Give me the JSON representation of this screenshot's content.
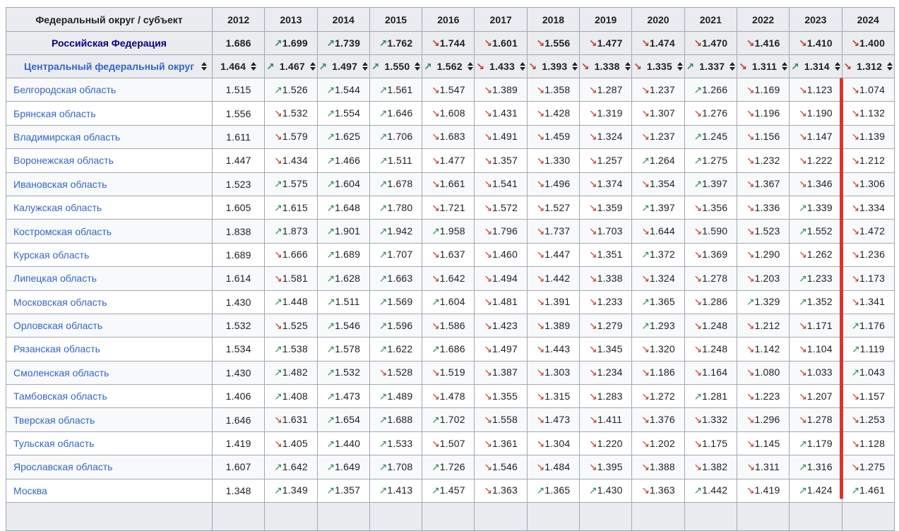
{
  "colors": {
    "header_bg": "#eaecf0",
    "border": "#a2a9b1",
    "link": "#3366cc",
    "federation_link": "#0b0080",
    "trend_up": "#2e8b57",
    "trend_down": "#c0392b",
    "highlight_line": "#e0312d",
    "row_stripe": "#f8f9fa"
  },
  "highlight": {
    "column": "2024"
  },
  "table": {
    "header": {
      "region_col": "Федеральный округ / субъект",
      "years": [
        "2012",
        "2013",
        "2014",
        "2015",
        "2016",
        "2017",
        "2018",
        "2019",
        "2020",
        "2021",
        "2022",
        "2023",
        "2024"
      ]
    },
    "federation_row": {
      "name": "Российская Федерация",
      "values": [
        "1.686",
        "↗1.699",
        "↗1.739",
        "↗1.762",
        "↘1.744",
        "↘1.601",
        "↘1.556",
        "↘1.477",
        "↘1.474",
        "↘1.470",
        "↘1.416",
        "↘1.410",
        "↘1.400"
      ]
    },
    "district_row": {
      "name": "Центральный федеральный округ",
      "values": [
        "1.464",
        "↗1.467",
        "↗1.497",
        "↗1.550",
        "↗1.562",
        "↘1.433",
        "↘1.393",
        "↘1.338",
        "↘1.335",
        "↗1.337",
        "↘1.311",
        "↗1.314",
        "↘1.312"
      ]
    },
    "region_rows": [
      {
        "name": "Белгородская область",
        "values": [
          "1.515",
          "↗1.526",
          "↗1.544",
          "↗1.561",
          "↘1.547",
          "↘1.389",
          "↘1.358",
          "↘1.287",
          "↘1.237",
          "↗1.266",
          "↘1.169",
          "↘1.123",
          "↘1.074"
        ]
      },
      {
        "name": "Брянская область",
        "values": [
          "1.556",
          "↘1.532",
          "↗1.554",
          "↗1.646",
          "↘1.608",
          "↘1.431",
          "↘1.428",
          "↘1.319",
          "↘1.307",
          "↘1.276",
          "↘1.196",
          "↘1.190",
          "↘1.132"
        ]
      },
      {
        "name": "Владимирская область",
        "values": [
          "1.611",
          "↘1.579",
          "↗1.625",
          "↗1.706",
          "↘1.683",
          "↘1.491",
          "↘1.459",
          "↘1.324",
          "↘1.237",
          "↗1.245",
          "↘1.156",
          "↘1.147",
          "↘1.139"
        ]
      },
      {
        "name": "Воронежская область",
        "values": [
          "1.447",
          "↘1.434",
          "↗1.466",
          "↗1.511",
          "↘1.477",
          "↘1.357",
          "↘1.330",
          "↘1.257",
          "↗1.264",
          "↗1.275",
          "↘1.232",
          "↘1.222",
          "↘1.212"
        ]
      },
      {
        "name": "Ивановская область",
        "values": [
          "1.523",
          "↗1.575",
          "↗1.604",
          "↗1.678",
          "↘1.661",
          "↘1.541",
          "↘1.496",
          "↘1.374",
          "↘1.354",
          "↗1.397",
          "↘1.367",
          "↘1.346",
          "↘1.306"
        ]
      },
      {
        "name": "Калужская область",
        "values": [
          "1.605",
          "↗1.615",
          "↗1.648",
          "↗1.780",
          "↘1.721",
          "↘1.572",
          "↘1.527",
          "↘1.359",
          "↗1.397",
          "↘1.356",
          "↘1.336",
          "↗1.339",
          "↘1.334"
        ]
      },
      {
        "name": "Костромская область",
        "values": [
          "1.838",
          "↗1.873",
          "↗1.901",
          "↗1.942",
          "↗1.958",
          "↘1.796",
          "↘1.737",
          "↘1.703",
          "↘1.644",
          "↘1.590",
          "↘1.523",
          "↗1.552",
          "↘1.472"
        ]
      },
      {
        "name": "Курская область",
        "values": [
          "1.689",
          "↘1.666",
          "↗1.689",
          "↗1.707",
          "↘1.637",
          "↘1.460",
          "↘1.447",
          "↘1.351",
          "↗1.372",
          "↘1.369",
          "↘1.290",
          "↘1.262",
          "↘1.236"
        ]
      },
      {
        "name": "Липецкая область",
        "values": [
          "1.614",
          "↘1.581",
          "↗1.628",
          "↗1.663",
          "↘1.642",
          "↘1.494",
          "↘1.442",
          "↘1.338",
          "↘1.324",
          "↘1.278",
          "↘1.203",
          "↗1.233",
          "↘1.173"
        ]
      },
      {
        "name": "Московская область",
        "values": [
          "1.430",
          "↗1.448",
          "↗1.511",
          "↗1.569",
          "↗1.604",
          "↘1.481",
          "↘1.391",
          "↘1.233",
          "↗1.365",
          "↘1.286",
          "↗1.329",
          "↗1.352",
          "↘1.341"
        ]
      },
      {
        "name": "Орловская область",
        "values": [
          "1.532",
          "↘1.525",
          "↗1.546",
          "↗1.596",
          "↘1.586",
          "↘1.423",
          "↘1.389",
          "↘1.279",
          "↗1.293",
          "↘1.248",
          "↘1.212",
          "↘1.171",
          "↗1.176"
        ]
      },
      {
        "name": "Рязанская область",
        "values": [
          "1.534",
          "↗1.538",
          "↗1.578",
          "↗1.622",
          "↗1.686",
          "↘1.497",
          "↘1.443",
          "↘1.345",
          "↘1.320",
          "↘1.248",
          "↘1.142",
          "↘1.104",
          "↗1.119"
        ]
      },
      {
        "name": "Смоленская область",
        "values": [
          "1.430",
          "↗1.482",
          "↗1.532",
          "↘1.528",
          "↘1.519",
          "↘1.387",
          "↘1.303",
          "↘1.234",
          "↘1.186",
          "↘1.164",
          "↘1.080",
          "↘1.033",
          "↗1.043"
        ]
      },
      {
        "name": "Тамбовская область",
        "values": [
          "1.406",
          "↗1.408",
          "↗1.473",
          "↗1.489",
          "↘1.478",
          "↘1.355",
          "↘1.315",
          "↘1.283",
          "↘1.272",
          "↗1.281",
          "↘1.223",
          "↘1.207",
          "↘1.157"
        ]
      },
      {
        "name": "Тверская область",
        "values": [
          "1.646",
          "↘1.631",
          "↗1.654",
          "↗1.688",
          "↗1.702",
          "↘1.558",
          "↘1.473",
          "↘1.411",
          "↘1.376",
          "↘1.332",
          "↘1.296",
          "↘1.278",
          "↘1.253"
        ]
      },
      {
        "name": "Тульская область",
        "values": [
          "1.419",
          "↘1.405",
          "↗1.440",
          "↗1.533",
          "↘1.507",
          "↘1.361",
          "↘1.304",
          "↘1.220",
          "↘1.202",
          "↘1.175",
          "↘1.145",
          "↗1.179",
          "↘1.128"
        ]
      },
      {
        "name": "Ярославская область",
        "values": [
          "1.607",
          "↗1.642",
          "↗1.649",
          "↗1.708",
          "↗1.726",
          "↘1.546",
          "↘1.484",
          "↘1.395",
          "↘1.388",
          "↘1.382",
          "↘1.311",
          "↗1.316",
          "↘1.275"
        ]
      },
      {
        "name": "Москва",
        "values": [
          "1.348",
          "↗1.349",
          "↗1.357",
          "↗1.413",
          "↗1.457",
          "↘1.363",
          "↗1.365",
          "↗1.430",
          "↘1.363",
          "↗1.442",
          "↘1.419",
          "↗1.424",
          "↗1.461"
        ]
      }
    ]
  }
}
